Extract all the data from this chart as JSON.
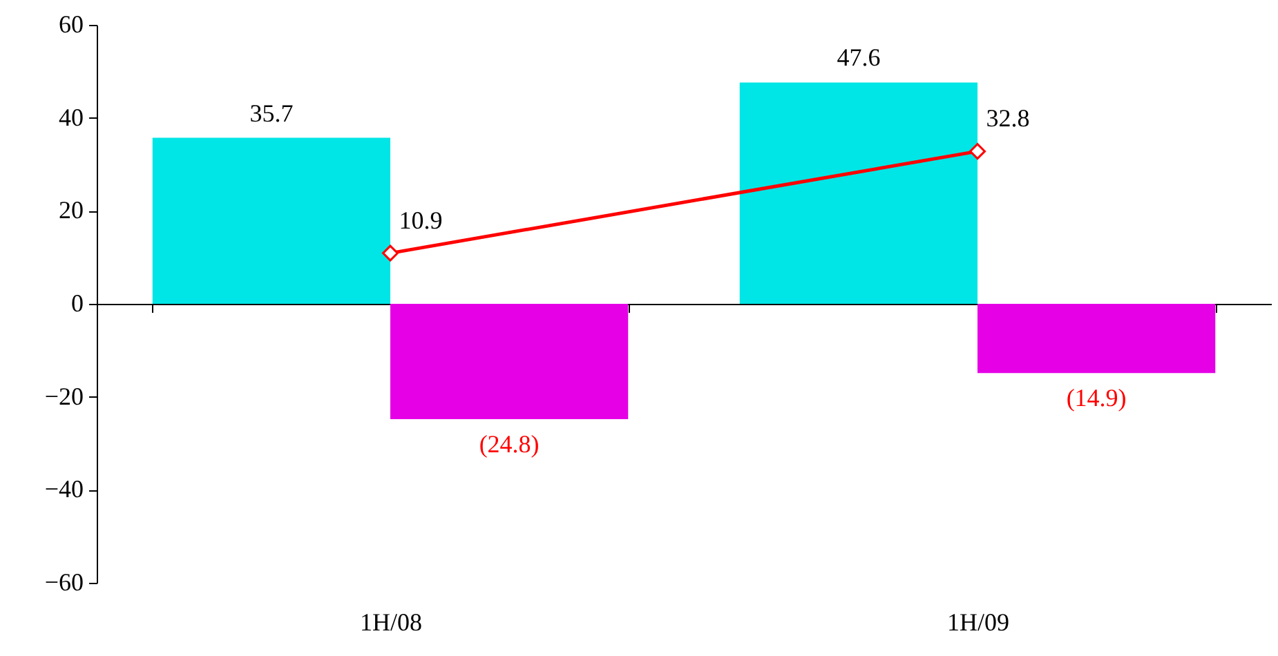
{
  "chart_data": {
    "type": "bar",
    "categories": [
      "1H/08",
      "1H/09"
    ],
    "series": [
      {
        "color": "#00e5e5",
        "values": [
          35.7,
          47.6
        ]
      },
      {
        "color": "#e500e5",
        "values": [
          -24.8,
          -14.9
        ],
        "value_labels": [
          "(24.8)",
          "(14.9)"
        ]
      },
      {
        "type": "line",
        "color": "#ff0000",
        "values": [
          10.9,
          32.8
        ]
      }
    ],
    "ylim": [
      -60,
      60
    ],
    "yticks": [
      -60,
      -40,
      -20,
      0,
      20,
      40,
      60
    ],
    "marker": "diamond",
    "line_style": "solid",
    "data_labels": true
  }
}
